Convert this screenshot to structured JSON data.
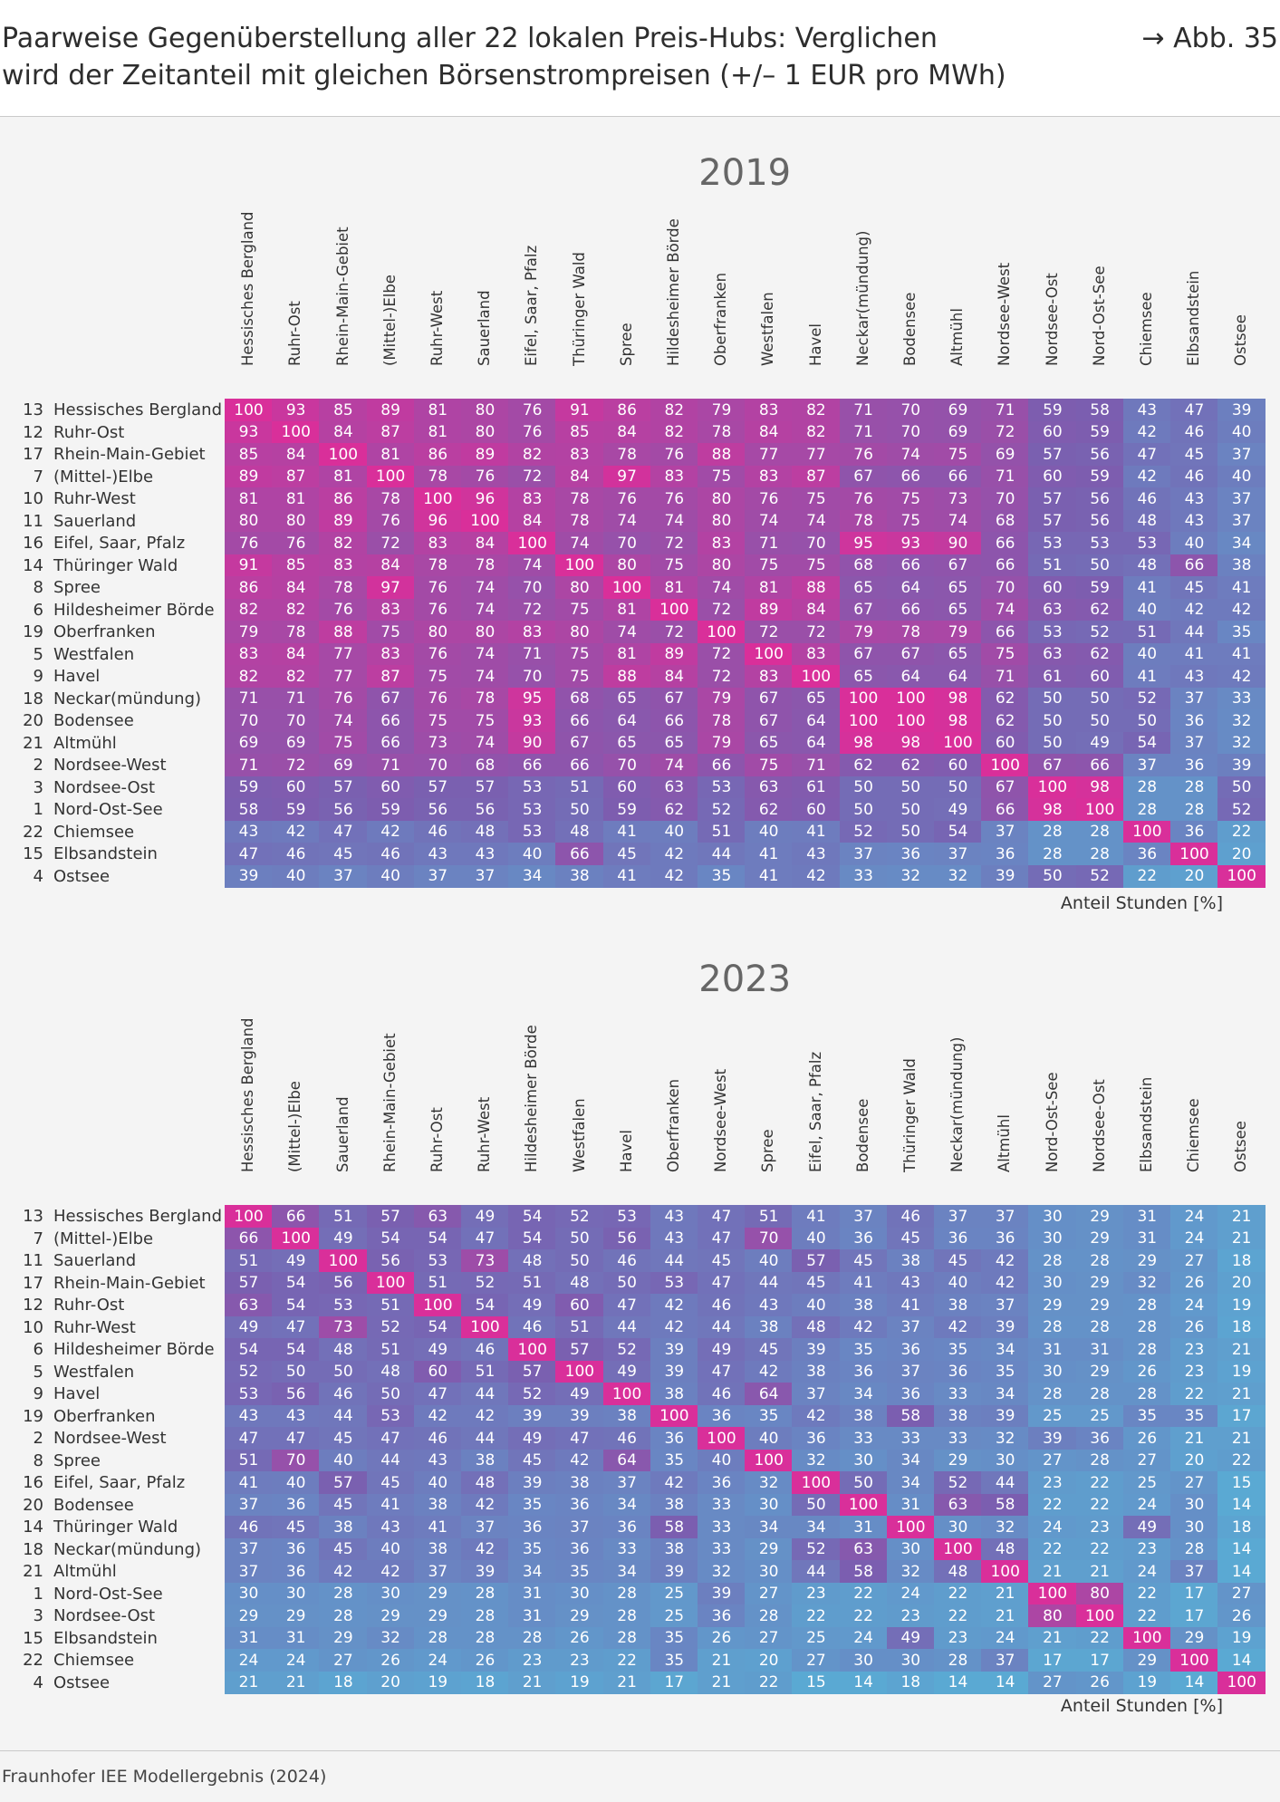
{
  "header": {
    "title": "Paarweise Gegenüberstellung aller 22 lokalen Preis-Hubs: Verglichen\nwird der Zeitanteil mit gleichen Börsenstrompreisen (+/– 1 EUR pro MWh)",
    "figure_ref": "→ Abb. 35"
  },
  "source": "Fraunhofer IEE Modellergebnis (2024)",
  "colors": {
    "low": "#5aa9d3",
    "mid": "#7a5fb0",
    "high": "#d92f9a"
  },
  "chart_data": [
    {
      "type": "heatmap",
      "title": "2019",
      "unit_label": "Anteil Stunden [%]",
      "row_numbers": [
        "13",
        "12",
        "17",
        "7",
        "10",
        "11",
        "16",
        "14",
        "8",
        "6",
        "19",
        "5",
        "9",
        "18",
        "20",
        "21",
        "2",
        "3",
        "1",
        "22",
        "15",
        "4"
      ],
      "rows": [
        "Hessisches Bergland",
        "Ruhr-Ost",
        "Rhein-Main-Gebiet",
        "(Mittel-)Elbe",
        "Ruhr-West",
        "Sauerland",
        "Eifel, Saar, Pfalz",
        "Thüringer Wald",
        "Spree",
        "Hildesheimer Börde",
        "Oberfranken",
        "Westfalen",
        "Havel",
        "Neckar(mündung)",
        "Bodensee",
        "Altmühl",
        "Nordsee-West",
        "Nordsee-Ost",
        "Nord-Ost-See",
        "Chiemsee",
        "Elbsandstein",
        "Ostsee"
      ],
      "columns": [
        "Hessisches Bergland",
        "Ruhr-Ost",
        "Rhein-Main-Gebiet",
        "(Mittel-)Elbe",
        "Ruhr-West",
        "Sauerland",
        "Eifel, Saar, Pfalz",
        "Thüringer Wald",
        "Spree",
        "Hildesheimer Börde",
        "Oberfranken",
        "Westfalen",
        "Havel",
        "Neckar(mündung)",
        "Bodensee",
        "Altmühl",
        "Nordsee-West",
        "Nordsee-Ost",
        "Nord-Ost-See",
        "Chiemsee",
        "Elbsandstein",
        "Ostsee"
      ],
      "values": [
        [
          100,
          93,
          85,
          89,
          81,
          80,
          76,
          91,
          86,
          82,
          79,
          83,
          82,
          71,
          70,
          69,
          71,
          59,
          58,
          43,
          47,
          39
        ],
        [
          93,
          100,
          84,
          87,
          81,
          80,
          76,
          85,
          84,
          82,
          78,
          84,
          82,
          71,
          70,
          69,
          72,
          60,
          59,
          42,
          46,
          40
        ],
        [
          85,
          84,
          100,
          81,
          86,
          89,
          82,
          83,
          78,
          76,
          88,
          77,
          77,
          76,
          74,
          75,
          69,
          57,
          56,
          47,
          45,
          37
        ],
        [
          89,
          87,
          81,
          100,
          78,
          76,
          72,
          84,
          97,
          83,
          75,
          83,
          87,
          67,
          66,
          66,
          71,
          60,
          59,
          42,
          46,
          40
        ],
        [
          81,
          81,
          86,
          78,
          100,
          96,
          83,
          78,
          76,
          76,
          80,
          76,
          75,
          76,
          75,
          73,
          70,
          57,
          56,
          46,
          43,
          37
        ],
        [
          80,
          80,
          89,
          76,
          96,
          100,
          84,
          78,
          74,
          74,
          80,
          74,
          74,
          78,
          75,
          74,
          68,
          57,
          56,
          48,
          43,
          37
        ],
        [
          76,
          76,
          82,
          72,
          83,
          84,
          100,
          74,
          70,
          72,
          83,
          71,
          70,
          95,
          93,
          90,
          66,
          53,
          53,
          53,
          40,
          34
        ],
        [
          91,
          85,
          83,
          84,
          78,
          78,
          74,
          100,
          80,
          75,
          80,
          75,
          75,
          68,
          66,
          67,
          66,
          51,
          50,
          48,
          66,
          38
        ],
        [
          86,
          84,
          78,
          97,
          76,
          74,
          70,
          80,
          100,
          81,
          74,
          81,
          88,
          65,
          64,
          65,
          70,
          60,
          59,
          41,
          45,
          41
        ],
        [
          82,
          82,
          76,
          83,
          76,
          74,
          72,
          75,
          81,
          100,
          72,
          89,
          84,
          67,
          66,
          65,
          74,
          63,
          62,
          40,
          42,
          42
        ],
        [
          79,
          78,
          88,
          75,
          80,
          80,
          83,
          80,
          74,
          72,
          100,
          72,
          72,
          79,
          78,
          79,
          66,
          53,
          52,
          51,
          44,
          35
        ],
        [
          83,
          84,
          77,
          83,
          76,
          74,
          71,
          75,
          81,
          89,
          72,
          100,
          83,
          67,
          67,
          65,
          75,
          63,
          62,
          40,
          41,
          41
        ],
        [
          82,
          82,
          77,
          87,
          75,
          74,
          70,
          75,
          88,
          84,
          72,
          83,
          100,
          65,
          64,
          64,
          71,
          61,
          60,
          41,
          43,
          42
        ],
        [
          71,
          71,
          76,
          67,
          76,
          78,
          95,
          68,
          65,
          67,
          79,
          67,
          65,
          100,
          100,
          98,
          62,
          50,
          50,
          52,
          37,
          33
        ],
        [
          70,
          70,
          74,
          66,
          75,
          75,
          93,
          66,
          64,
          66,
          78,
          67,
          64,
          100,
          100,
          98,
          62,
          50,
          50,
          50,
          36,
          32
        ],
        [
          69,
          69,
          75,
          66,
          73,
          74,
          90,
          67,
          65,
          65,
          79,
          65,
          64,
          98,
          98,
          100,
          60,
          50,
          49,
          54,
          37,
          32
        ],
        [
          71,
          72,
          69,
          71,
          70,
          68,
          66,
          66,
          70,
          74,
          66,
          75,
          71,
          62,
          62,
          60,
          100,
          67,
          66,
          37,
          36,
          39
        ],
        [
          59,
          60,
          57,
          60,
          57,
          57,
          53,
          51,
          60,
          63,
          53,
          63,
          61,
          50,
          50,
          50,
          67,
          100,
          98,
          28,
          28,
          50
        ],
        [
          58,
          59,
          56,
          59,
          56,
          56,
          53,
          50,
          59,
          62,
          52,
          62,
          60,
          50,
          50,
          49,
          66,
          98,
          100,
          28,
          28,
          52
        ],
        [
          43,
          42,
          47,
          42,
          46,
          48,
          53,
          48,
          41,
          40,
          51,
          40,
          41,
          52,
          50,
          54,
          37,
          28,
          28,
          100,
          36,
          22
        ],
        [
          47,
          46,
          45,
          46,
          43,
          43,
          40,
          66,
          45,
          42,
          44,
          41,
          43,
          37,
          36,
          37,
          36,
          28,
          28,
          36,
          100,
          20
        ],
        [
          39,
          40,
          37,
          40,
          37,
          37,
          34,
          38,
          41,
          42,
          35,
          41,
          42,
          33,
          32,
          32,
          39,
          50,
          52,
          22,
          20,
          100
        ]
      ]
    },
    {
      "type": "heatmap",
      "title": "2023",
      "unit_label": "Anteil Stunden [%]",
      "row_numbers": [
        "13",
        "7",
        "11",
        "17",
        "12",
        "10",
        "6",
        "5",
        "9",
        "19",
        "2",
        "8",
        "16",
        "20",
        "14",
        "18",
        "21",
        "1",
        "3",
        "15",
        "22",
        "4"
      ],
      "rows": [
        "Hessisches Bergland",
        "(Mittel-)Elbe",
        "Sauerland",
        "Rhein-Main-Gebiet",
        "Ruhr-Ost",
        "Ruhr-West",
        "Hildesheimer Börde",
        "Westfalen",
        "Havel",
        "Oberfranken",
        "Nordsee-West",
        "Spree",
        "Eifel, Saar, Pfalz",
        "Bodensee",
        "Thüringer Wald",
        "Neckar(mündung)",
        "Altmühl",
        "Nord-Ost-See",
        "Nordsee-Ost",
        "Elbsandstein",
        "Chiemsee",
        "Ostsee"
      ],
      "columns": [
        "Hessisches Bergland",
        "(Mittel-)Elbe",
        "Sauerland",
        "Rhein-Main-Gebiet",
        "Ruhr-Ost",
        "Ruhr-West",
        "Hildesheimer Börde",
        "Westfalen",
        "Havel",
        "Oberfranken",
        "Nordsee-West",
        "Spree",
        "Eifel, Saar, Pfalz",
        "Bodensee",
        "Thüringer Wald",
        "Neckar(mündung)",
        "Altmühl",
        "Nord-Ost-See",
        "Nordsee-Ost",
        "Elbsandstein",
        "Chiemsee",
        "Ostsee"
      ],
      "values": [
        [
          100,
          66,
          51,
          57,
          63,
          49,
          54,
          52,
          53,
          43,
          47,
          51,
          41,
          37,
          46,
          37,
          37,
          30,
          29,
          31,
          24,
          21
        ],
        [
          66,
          100,
          49,
          54,
          54,
          47,
          54,
          50,
          56,
          43,
          47,
          70,
          40,
          36,
          45,
          36,
          36,
          30,
          29,
          31,
          24,
          21
        ],
        [
          51,
          49,
          100,
          56,
          53,
          73,
          48,
          50,
          46,
          44,
          45,
          40,
          57,
          45,
          38,
          45,
          42,
          28,
          28,
          29,
          27,
          18
        ],
        [
          57,
          54,
          56,
          100,
          51,
          52,
          51,
          48,
          50,
          53,
          47,
          44,
          45,
          41,
          43,
          40,
          42,
          30,
          29,
          32,
          26,
          20
        ],
        [
          63,
          54,
          53,
          51,
          100,
          54,
          49,
          60,
          47,
          42,
          46,
          43,
          40,
          38,
          41,
          38,
          37,
          29,
          29,
          28,
          24,
          19
        ],
        [
          49,
          47,
          73,
          52,
          54,
          100,
          46,
          51,
          44,
          42,
          44,
          38,
          48,
          42,
          37,
          42,
          39,
          28,
          28,
          28,
          26,
          18
        ],
        [
          54,
          54,
          48,
          51,
          49,
          46,
          100,
          57,
          52,
          39,
          49,
          45,
          39,
          35,
          36,
          35,
          34,
          31,
          31,
          28,
          23,
          21
        ],
        [
          52,
          50,
          50,
          48,
          60,
          51,
          57,
          100,
          49,
          39,
          47,
          42,
          38,
          36,
          37,
          36,
          35,
          30,
          29,
          26,
          23,
          19
        ],
        [
          53,
          56,
          46,
          50,
          47,
          44,
          52,
          49,
          100,
          38,
          46,
          64,
          37,
          34,
          36,
          33,
          34,
          28,
          28,
          28,
          22,
          21
        ],
        [
          43,
          43,
          44,
          53,
          42,
          42,
          39,
          39,
          38,
          100,
          36,
          35,
          42,
          38,
          58,
          38,
          39,
          25,
          25,
          35,
          35,
          17
        ],
        [
          47,
          47,
          45,
          47,
          46,
          44,
          49,
          47,
          46,
          36,
          100,
          40,
          36,
          33,
          33,
          33,
          32,
          39,
          36,
          26,
          21,
          21
        ],
        [
          51,
          70,
          40,
          44,
          43,
          38,
          45,
          42,
          64,
          35,
          40,
          100,
          32,
          30,
          34,
          29,
          30,
          27,
          28,
          27,
          20,
          22
        ],
        [
          41,
          40,
          57,
          45,
          40,
          48,
          39,
          38,
          37,
          42,
          36,
          32,
          100,
          50,
          34,
          52,
          44,
          23,
          22,
          25,
          27,
          15
        ],
        [
          37,
          36,
          45,
          41,
          38,
          42,
          35,
          36,
          34,
          38,
          33,
          30,
          50,
          100,
          31,
          63,
          58,
          22,
          22,
          24,
          30,
          14
        ],
        [
          46,
          45,
          38,
          43,
          41,
          37,
          36,
          37,
          36,
          58,
          33,
          34,
          34,
          31,
          100,
          30,
          32,
          24,
          23,
          49,
          30,
          18
        ],
        [
          37,
          36,
          45,
          40,
          38,
          42,
          35,
          36,
          33,
          38,
          33,
          29,
          52,
          63,
          30,
          100,
          48,
          22,
          22,
          23,
          28,
          14
        ],
        [
          37,
          36,
          42,
          42,
          37,
          39,
          34,
          35,
          34,
          39,
          32,
          30,
          44,
          58,
          32,
          48,
          100,
          21,
          21,
          24,
          37,
          14
        ],
        [
          30,
          30,
          28,
          30,
          29,
          28,
          31,
          30,
          28,
          25,
          39,
          27,
          23,
          22,
          24,
          22,
          21,
          100,
          80,
          22,
          17,
          27
        ],
        [
          29,
          29,
          28,
          29,
          29,
          28,
          31,
          29,
          28,
          25,
          36,
          28,
          22,
          22,
          23,
          22,
          21,
          80,
          100,
          22,
          17,
          26
        ],
        [
          31,
          31,
          29,
          32,
          28,
          28,
          28,
          26,
          28,
          35,
          26,
          27,
          25,
          24,
          49,
          23,
          24,
          21,
          22,
          100,
          29,
          19
        ],
        [
          24,
          24,
          27,
          26,
          24,
          26,
          23,
          23,
          22,
          35,
          21,
          20,
          27,
          30,
          30,
          28,
          37,
          17,
          17,
          29,
          100,
          14
        ],
        [
          21,
          21,
          18,
          20,
          19,
          18,
          21,
          19,
          21,
          17,
          21,
          22,
          15,
          14,
          18,
          14,
          14,
          27,
          26,
          19,
          14,
          100
        ]
      ]
    }
  ]
}
